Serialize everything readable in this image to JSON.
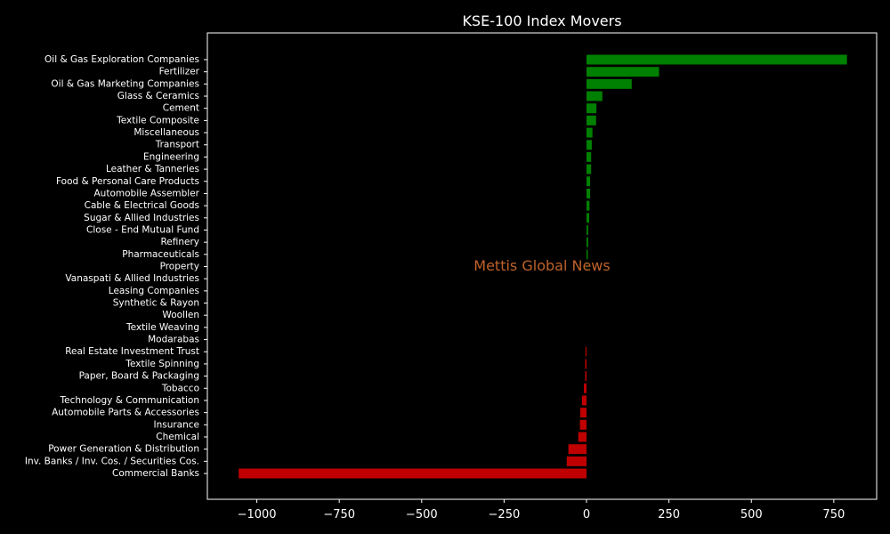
{
  "chart_data": {
    "type": "bar",
    "orientation": "horizontal",
    "title": "KSE-100 Index Movers",
    "xlabel": "",
    "ylabel": "",
    "xlim": [
      -1150,
      880
    ],
    "xticks": [
      -1000,
      -750,
      -500,
      -250,
      0,
      250,
      500,
      750
    ],
    "xtick_labels": [
      "−1000",
      "−750",
      "−500",
      "−250",
      "0",
      "250",
      "500",
      "750"
    ],
    "grid": false,
    "categories": [
      "Oil & Gas Exploration Companies",
      "Fertilizer",
      "Oil & Gas Marketing Companies",
      "Glass & Ceramics",
      "Cement",
      "Textile Composite",
      "Miscellaneous",
      "Transport",
      "Engineering",
      "Leather & Tanneries",
      "Food & Personal Care Products",
      "Automobile Assembler",
      "Cable & Electrical Goods",
      "Sugar & Allied Industries",
      "Close - End Mutual Fund",
      "Refinery",
      "Pharmaceuticals",
      "Property",
      "Vanaspati & Allied Industries",
      "Leasing Companies",
      "Synthetic & Rayon",
      "Woollen",
      "Textile Weaving",
      "Modarabas",
      "Real Estate Investment Trust",
      "Textile Spinning",
      "Paper, Board & Packaging",
      "Tobacco",
      "Technology & Communication",
      "Automobile Parts & Accessories",
      "Insurance",
      "Chemical",
      "Power Generation & Distribution",
      "Inv. Banks / Inv. Cos. / Securities Cos.",
      "Commercial Banks"
    ],
    "values": [
      790,
      220,
      137,
      48,
      30,
      29,
      18,
      16,
      14,
      14,
      11,
      11,
      9,
      8,
      5,
      5,
      4,
      1,
      0,
      0,
      0,
      0,
      0,
      0,
      -3,
      -4,
      -4,
      -8,
      -14,
      -19,
      -20,
      -25,
      -55,
      -60,
      -1055
    ],
    "positive_color": "#008000",
    "negative_color": "#c00000",
    "background_color": "#000000",
    "axes_color": "#ffffff"
  },
  "watermark": "Mettis Global News"
}
